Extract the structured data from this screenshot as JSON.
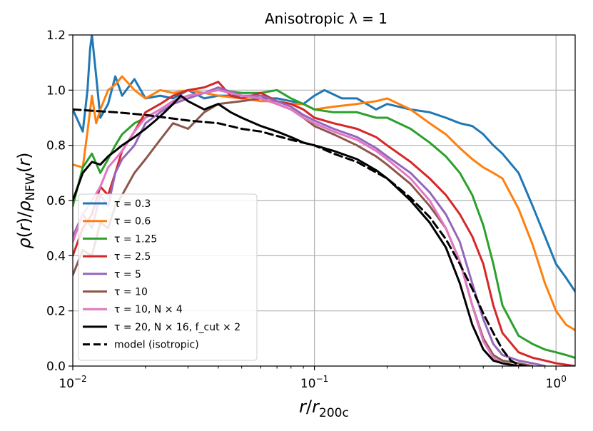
{
  "chart_data": {
    "type": "line",
    "title": "Anisotropic λ = 1",
    "xlabel": "r/r200c",
    "ylabel": "ρ(r)/ρNFW(r)",
    "xscale": "log",
    "xlim": [
      0.01,
      1.2
    ],
    "ylim": [
      0.0,
      1.2
    ],
    "grid": true,
    "legend_position": "lower-left",
    "x_ticks": [
      {
        "value": 0.01,
        "base": "10",
        "exp": "−2"
      },
      {
        "value": 0.1,
        "base": "10",
        "exp": "−1"
      },
      {
        "value": 1.0,
        "base": "10",
        "exp": "0"
      }
    ],
    "y_ticks": [
      {
        "value": 0.0,
        "label": "0.0"
      },
      {
        "value": 0.2,
        "label": "0.2"
      },
      {
        "value": 0.4,
        "label": "0.4"
      },
      {
        "value": 0.6,
        "label": "0.6"
      },
      {
        "value": 0.8,
        "label": "0.8"
      },
      {
        "value": 1.0,
        "label": "1.0"
      },
      {
        "value": 1.2,
        "label": "1.2"
      }
    ],
    "series": [
      {
        "name": "τ = 0.3",
        "color": "#1f77b4",
        "dash": false,
        "x": [
          0.01,
          0.011,
          0.0115,
          0.0118,
          0.012,
          0.0125,
          0.013,
          0.014,
          0.015,
          0.016,
          0.018,
          0.02,
          0.023,
          0.026,
          0.03,
          0.035,
          0.04,
          0.05,
          0.06,
          0.07,
          0.08,
          0.09,
          0.1,
          0.11,
          0.13,
          0.15,
          0.18,
          0.2,
          0.25,
          0.3,
          0.35,
          0.4,
          0.45,
          0.5,
          0.55,
          0.6,
          0.7,
          0.8,
          0.9,
          1.0,
          1.1,
          1.2
        ],
        "y": [
          0.93,
          0.85,
          1.0,
          1.15,
          1.2,
          1.05,
          0.9,
          0.95,
          1.05,
          0.98,
          1.04,
          0.97,
          0.98,
          0.97,
          1.0,
          0.97,
          0.98,
          0.98,
          0.97,
          0.97,
          0.96,
          0.95,
          0.98,
          1.0,
          0.97,
          0.97,
          0.93,
          0.95,
          0.93,
          0.92,
          0.9,
          0.88,
          0.87,
          0.84,
          0.8,
          0.77,
          0.7,
          0.58,
          0.47,
          0.37,
          0.32,
          0.27
        ]
      },
      {
        "name": "τ = 0.6",
        "color": "#ff7f0e",
        "dash": false,
        "x": [
          0.01,
          0.011,
          0.0115,
          0.012,
          0.0125,
          0.013,
          0.014,
          0.015,
          0.016,
          0.018,
          0.02,
          0.023,
          0.026,
          0.03,
          0.035,
          0.04,
          0.05,
          0.06,
          0.07,
          0.08,
          0.09,
          0.1,
          0.12,
          0.15,
          0.18,
          0.2,
          0.25,
          0.3,
          0.35,
          0.4,
          0.45,
          0.5,
          0.55,
          0.6,
          0.7,
          0.8,
          0.9,
          1.0,
          1.1,
          1.2
        ],
        "y": [
          0.73,
          0.72,
          0.85,
          0.98,
          0.88,
          0.93,
          1.0,
          1.02,
          1.05,
          1.0,
          0.97,
          1.0,
          0.99,
          1.0,
          0.99,
          0.98,
          0.97,
          0.96,
          0.96,
          0.95,
          0.95,
          0.93,
          0.94,
          0.95,
          0.96,
          0.97,
          0.93,
          0.88,
          0.84,
          0.79,
          0.75,
          0.72,
          0.7,
          0.68,
          0.57,
          0.44,
          0.3,
          0.2,
          0.15,
          0.13
        ]
      },
      {
        "name": "τ = 1.25",
        "color": "#2ca02c",
        "dash": false,
        "x": [
          0.01,
          0.011,
          0.012,
          0.013,
          0.014,
          0.015,
          0.016,
          0.018,
          0.02,
          0.023,
          0.026,
          0.03,
          0.035,
          0.04,
          0.05,
          0.06,
          0.07,
          0.08,
          0.09,
          0.1,
          0.12,
          0.15,
          0.18,
          0.2,
          0.25,
          0.3,
          0.35,
          0.4,
          0.45,
          0.5,
          0.55,
          0.6,
          0.7,
          0.8,
          0.9,
          1.0,
          1.1,
          1.2
        ],
        "y": [
          0.58,
          0.72,
          0.77,
          0.7,
          0.75,
          0.8,
          0.84,
          0.88,
          0.9,
          0.93,
          0.96,
          0.98,
          0.99,
          1.0,
          0.99,
          0.99,
          1.0,
          0.97,
          0.95,
          0.93,
          0.92,
          0.92,
          0.9,
          0.9,
          0.86,
          0.81,
          0.76,
          0.7,
          0.62,
          0.51,
          0.37,
          0.22,
          0.11,
          0.08,
          0.06,
          0.05,
          0.04,
          0.03
        ]
      },
      {
        "name": "τ = 2.5",
        "color": "#d62728",
        "dash": false,
        "x": [
          0.01,
          0.011,
          0.012,
          0.013,
          0.014,
          0.015,
          0.016,
          0.018,
          0.02,
          0.023,
          0.026,
          0.03,
          0.035,
          0.04,
          0.045,
          0.05,
          0.06,
          0.07,
          0.08,
          0.09,
          0.1,
          0.12,
          0.15,
          0.18,
          0.2,
          0.25,
          0.3,
          0.35,
          0.4,
          0.45,
          0.5,
          0.55,
          0.6,
          0.7,
          0.8,
          0.9,
          1.0,
          1.1,
          1.2
        ],
        "y": [
          0.4,
          0.5,
          0.55,
          0.65,
          0.62,
          0.7,
          0.78,
          0.85,
          0.92,
          0.95,
          0.98,
          1.0,
          1.01,
          1.03,
          0.98,
          0.97,
          0.99,
          0.96,
          0.95,
          0.93,
          0.9,
          0.88,
          0.86,
          0.83,
          0.8,
          0.74,
          0.68,
          0.62,
          0.55,
          0.47,
          0.37,
          0.22,
          0.12,
          0.05,
          0.03,
          0.02,
          0.01,
          0.005,
          0.0
        ]
      },
      {
        "name": "τ = 5",
        "color": "#9467bd",
        "dash": false,
        "x": [
          0.01,
          0.011,
          0.012,
          0.013,
          0.014,
          0.015,
          0.016,
          0.018,
          0.02,
          0.023,
          0.026,
          0.03,
          0.035,
          0.04,
          0.05,
          0.06,
          0.07,
          0.08,
          0.09,
          0.1,
          0.12,
          0.15,
          0.18,
          0.2,
          0.25,
          0.3,
          0.35,
          0.4,
          0.45,
          0.5,
          0.55,
          0.6,
          0.7,
          0.8,
          0.9
        ],
        "y": [
          0.47,
          0.55,
          0.5,
          0.62,
          0.58,
          0.7,
          0.75,
          0.8,
          0.88,
          0.92,
          0.95,
          0.97,
          0.99,
          1.01,
          0.98,
          0.98,
          0.96,
          0.94,
          0.91,
          0.89,
          0.86,
          0.83,
          0.79,
          0.76,
          0.7,
          0.63,
          0.55,
          0.45,
          0.3,
          0.17,
          0.08,
          0.04,
          0.02,
          0.01,
          0.0
        ]
      },
      {
        "name": "τ = 10",
        "color": "#8c564b",
        "dash": false,
        "x": [
          0.01,
          0.011,
          0.012,
          0.013,
          0.014,
          0.015,
          0.016,
          0.018,
          0.02,
          0.023,
          0.026,
          0.03,
          0.035,
          0.04,
          0.05,
          0.06,
          0.07,
          0.08,
          0.09,
          0.1,
          0.12,
          0.15,
          0.18,
          0.2,
          0.25,
          0.3,
          0.35,
          0.4,
          0.45,
          0.5,
          0.55,
          0.6,
          0.7,
          0.8
        ],
        "y": [
          0.33,
          0.42,
          0.4,
          0.52,
          0.5,
          0.58,
          0.62,
          0.7,
          0.75,
          0.82,
          0.88,
          0.86,
          0.92,
          0.95,
          0.96,
          0.97,
          0.95,
          0.93,
          0.9,
          0.87,
          0.84,
          0.8,
          0.76,
          0.73,
          0.66,
          0.58,
          0.5,
          0.38,
          0.22,
          0.1,
          0.04,
          0.02,
          0.01,
          0.0
        ]
      },
      {
        "name": "τ = 10, N × 4",
        "color": "#e377c2",
        "dash": false,
        "x": [
          0.01,
          0.011,
          0.012,
          0.013,
          0.014,
          0.015,
          0.016,
          0.018,
          0.02,
          0.023,
          0.026,
          0.03,
          0.035,
          0.04,
          0.05,
          0.06,
          0.07,
          0.08,
          0.09,
          0.1,
          0.12,
          0.15,
          0.18,
          0.2,
          0.25,
          0.3,
          0.35,
          0.4,
          0.45,
          0.5,
          0.55,
          0.6,
          0.7
        ],
        "y": [
          0.45,
          0.55,
          0.6,
          0.65,
          0.72,
          0.75,
          0.78,
          0.85,
          0.9,
          0.93,
          0.96,
          0.98,
          0.99,
          1.0,
          0.98,
          0.97,
          0.95,
          0.93,
          0.9,
          0.88,
          0.85,
          0.82,
          0.78,
          0.75,
          0.68,
          0.6,
          0.5,
          0.38,
          0.22,
          0.09,
          0.03,
          0.01,
          0.0
        ]
      },
      {
        "name": "τ = 20, N × 16, f_cut × 2",
        "color": "#000000",
        "dash": false,
        "x": [
          0.01,
          0.011,
          0.012,
          0.013,
          0.014,
          0.015,
          0.016,
          0.018,
          0.02,
          0.022,
          0.024,
          0.026,
          0.028,
          0.03,
          0.035,
          0.04,
          0.045,
          0.05,
          0.06,
          0.07,
          0.08,
          0.09,
          0.1,
          0.12,
          0.15,
          0.18,
          0.2,
          0.25,
          0.3,
          0.35,
          0.4,
          0.45,
          0.5,
          0.55,
          0.6,
          0.7
        ],
        "y": [
          0.6,
          0.7,
          0.74,
          0.73,
          0.76,
          0.78,
          0.8,
          0.83,
          0.86,
          0.89,
          0.92,
          0.95,
          0.98,
          0.96,
          0.93,
          0.95,
          0.92,
          0.9,
          0.87,
          0.85,
          0.83,
          0.81,
          0.8,
          0.78,
          0.75,
          0.71,
          0.68,
          0.6,
          0.52,
          0.43,
          0.3,
          0.15,
          0.06,
          0.02,
          0.01,
          0.0
        ]
      },
      {
        "name": "model (isotropic)",
        "color": "#000000",
        "dash": true,
        "x": [
          0.01,
          0.015,
          0.02,
          0.03,
          0.04,
          0.05,
          0.06,
          0.08,
          0.1,
          0.12,
          0.15,
          0.2,
          0.25,
          0.3,
          0.35,
          0.4,
          0.45,
          0.5,
          0.55,
          0.6,
          0.65,
          0.7,
          0.75
        ],
        "y": [
          0.93,
          0.92,
          0.91,
          0.89,
          0.88,
          0.86,
          0.85,
          0.82,
          0.8,
          0.77,
          0.74,
          0.68,
          0.61,
          0.54,
          0.46,
          0.37,
          0.28,
          0.19,
          0.12,
          0.06,
          0.02,
          0.005,
          0.0
        ]
      }
    ]
  }
}
